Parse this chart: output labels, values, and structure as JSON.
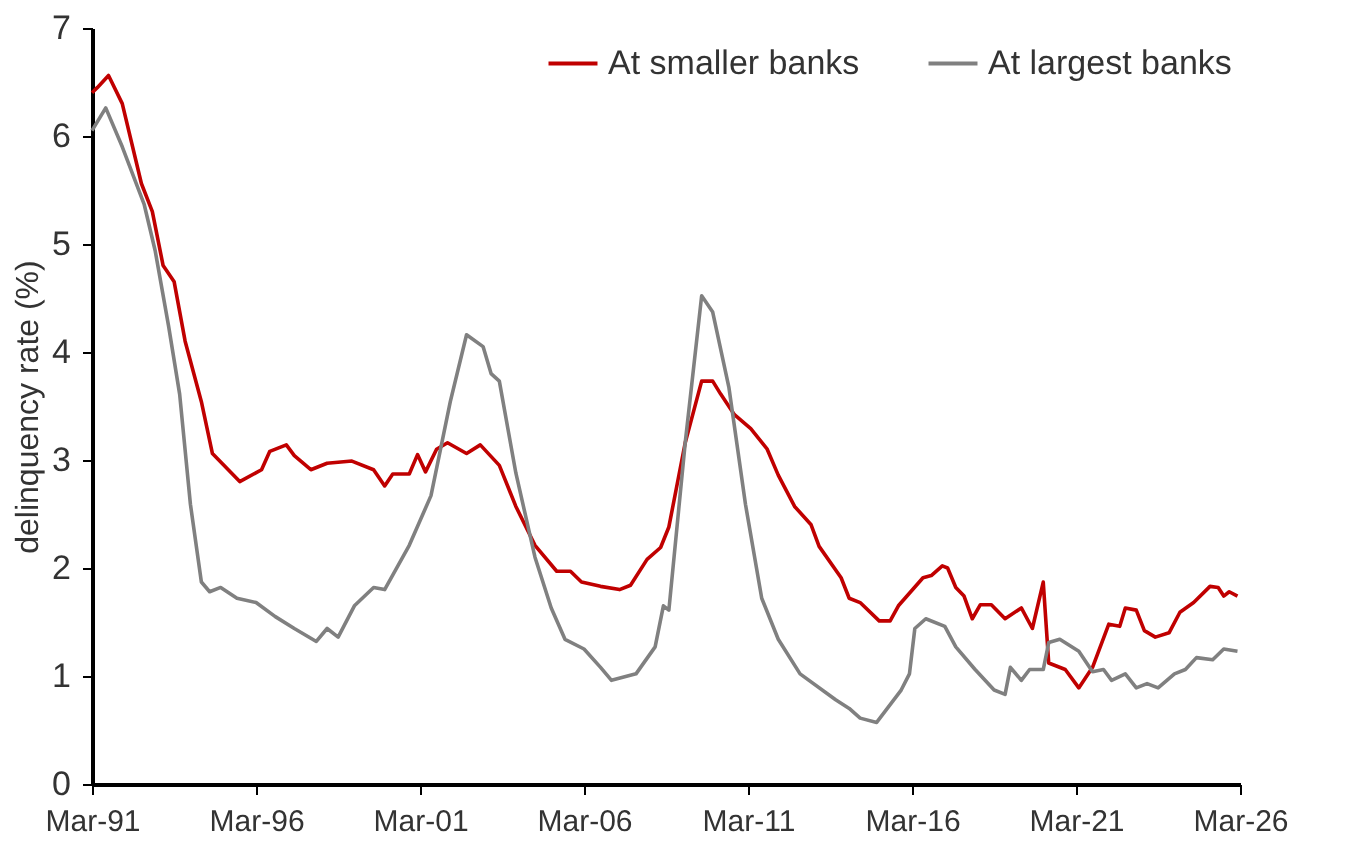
{
  "chart_data": {
    "type": "line",
    "ylabel": "delinquency rate (%)",
    "xlim": [
      "1991-03",
      "2026-03"
    ],
    "xticks": [
      {
        "value": "1991-03",
        "label": "Mar-91"
      },
      {
        "value": "1996-03",
        "label": "Mar-96"
      },
      {
        "value": "2001-03",
        "label": "Mar-01"
      },
      {
        "value": "2006-03",
        "label": "Mar-06"
      },
      {
        "value": "2011-03",
        "label": "Mar-11"
      },
      {
        "value": "2016-03",
        "label": "Mar-16"
      },
      {
        "value": "2021-03",
        "label": "Mar-21"
      },
      {
        "value": "2026-03",
        "label": "Mar-26"
      }
    ],
    "ylim": [
      0,
      7
    ],
    "yticks": [
      0,
      1,
      2,
      3,
      4,
      5,
      6,
      7
    ],
    "grid": false,
    "legend": "top right",
    "line_style": "solid",
    "marker": "none",
    "series": [
      {
        "name": "At smaller banks",
        "color": "#c00000",
        "x": [
          "1991-03",
          "1991-05",
          "1991-09",
          "1992-02",
          "1992-09",
          "1993-01",
          "1993-05",
          "1993-09",
          "1994-01",
          "1994-07",
          "1994-11",
          "1995-09",
          "1996-05",
          "1996-08",
          "1997-02",
          "1997-05",
          "1997-11",
          "1998-05",
          "1999-02",
          "1999-10",
          "2000-02",
          "2000-05",
          "2000-11",
          "2001-02",
          "2001-05",
          "2001-09",
          "2002-01",
          "2002-08",
          "2003-01",
          "2003-08",
          "2004-02",
          "2004-09",
          "2005-05",
          "2005-10",
          "2006-02",
          "2006-09",
          "2007-04",
          "2007-08",
          "2008-02",
          "2008-07",
          "2008-10",
          "2009-04",
          "2009-10",
          "2010-02",
          "2010-05",
          "2010-10",
          "2011-04",
          "2011-10",
          "2012-02",
          "2012-08",
          "2013-02",
          "2013-05",
          "2014-01",
          "2014-04",
          "2014-08",
          "2015-03",
          "2015-07",
          "2015-10",
          "2016-07",
          "2016-10",
          "2017-02",
          "2017-04",
          "2017-07",
          "2017-10",
          "2018-01",
          "2018-04",
          "2018-08",
          "2019-01",
          "2019-07",
          "2019-11",
          "2020-03",
          "2020-05",
          "2020-11",
          "2021-04",
          "2021-09",
          "2022-03",
          "2022-07",
          "2022-09",
          "2023-01",
          "2023-04",
          "2023-08",
          "2024-01",
          "2024-05",
          "2024-10",
          "2025-04",
          "2025-07",
          "2025-09",
          "2025-11",
          "2026-02"
        ],
        "values": [
          6.4,
          6.45,
          6.56,
          6.3,
          5.56,
          5.3,
          4.8,
          4.65,
          4.1,
          3.54,
          3.06,
          2.8,
          2.91,
          3.08,
          3.14,
          3.04,
          2.91,
          2.97,
          2.99,
          2.91,
          2.76,
          2.87,
          2.87,
          3.05,
          2.89,
          3.1,
          3.16,
          3.06,
          3.14,
          2.95,
          2.57,
          2.21,
          1.97,
          1.97,
          1.87,
          1.83,
          1.8,
          1.84,
          2.08,
          2.19,
          2.38,
          3.16,
          3.73,
          3.73,
          3.61,
          3.42,
          3.29,
          3.1,
          2.86,
          2.57,
          2.4,
          2.2,
          1.91,
          1.72,
          1.68,
          1.51,
          1.51,
          1.65,
          1.91,
          1.93,
          2.02,
          2.0,
          1.82,
          1.74,
          1.53,
          1.66,
          1.66,
          1.53,
          1.63,
          1.44,
          1.87,
          1.12,
          1.06,
          0.89,
          1.08,
          1.48,
          1.46,
          1.63,
          1.61,
          1.42,
          1.36,
          1.4,
          1.59,
          1.68,
          1.83,
          1.82,
          1.74,
          1.78,
          1.74
        ]
      },
      {
        "name": "At largest banks",
        "color": "#808080",
        "x": [
          "1991-03",
          "1991-08",
          "1992-02",
          "1992-10",
          "1993-02",
          "1993-07",
          "1993-11",
          "1994-03",
          "1994-07",
          "1994-10",
          "1995-02",
          "1995-08",
          "1996-03",
          "1996-10",
          "1997-05",
          "1998-01",
          "1998-05",
          "1998-09",
          "1999-03",
          "1999-10",
          "2000-02",
          "2000-11",
          "2001-07",
          "2002-02",
          "2002-08",
          "2003-02",
          "2003-05",
          "2003-08",
          "2004-02",
          "2004-09",
          "2005-03",
          "2005-08",
          "2006-03",
          "2006-09",
          "2007-01",
          "2007-10",
          "2008-05",
          "2008-08",
          "2008-10",
          "2009-04",
          "2009-10",
          "2010-02",
          "2010-08",
          "2011-02",
          "2011-08",
          "2012-02",
          "2012-10",
          "2013-11",
          "2014-04",
          "2014-08",
          "2015-02",
          "2015-11",
          "2016-02",
          "2016-04",
          "2016-08",
          "2017-03",
          "2017-07",
          "2018-02",
          "2018-09",
          "2019-01",
          "2019-03",
          "2019-07",
          "2019-10",
          "2020-03",
          "2020-05",
          "2020-09",
          "2021-04",
          "2021-09",
          "2022-01",
          "2022-04",
          "2022-09",
          "2023-01",
          "2023-05",
          "2023-09",
          "2024-03",
          "2024-07",
          "2024-11",
          "2025-05",
          "2025-09",
          "2026-02"
        ],
        "values": [
          6.05,
          6.26,
          5.9,
          5.37,
          4.94,
          4.24,
          3.61,
          2.59,
          1.87,
          1.78,
          1.82,
          1.72,
          1.68,
          1.55,
          1.44,
          1.32,
          1.44,
          1.36,
          1.65,
          1.82,
          1.8,
          2.21,
          2.67,
          3.54,
          4.16,
          4.05,
          3.8,
          3.73,
          2.88,
          2.1,
          1.63,
          1.34,
          1.25,
          1.08,
          0.96,
          1.02,
          1.27,
          1.65,
          1.61,
          3.16,
          4.52,
          4.37,
          3.67,
          2.59,
          1.72,
          1.34,
          1.02,
          0.78,
          0.7,
          0.61,
          0.57,
          0.87,
          1.02,
          1.44,
          1.53,
          1.46,
          1.27,
          1.06,
          0.87,
          0.83,
          1.08,
          0.96,
          1.06,
          1.06,
          1.31,
          1.34,
          1.23,
          1.04,
          1.06,
          0.96,
          1.02,
          0.89,
          0.93,
          0.89,
          1.02,
          1.06,
          1.17,
          1.15,
          1.25,
          1.23
        ]
      }
    ]
  }
}
